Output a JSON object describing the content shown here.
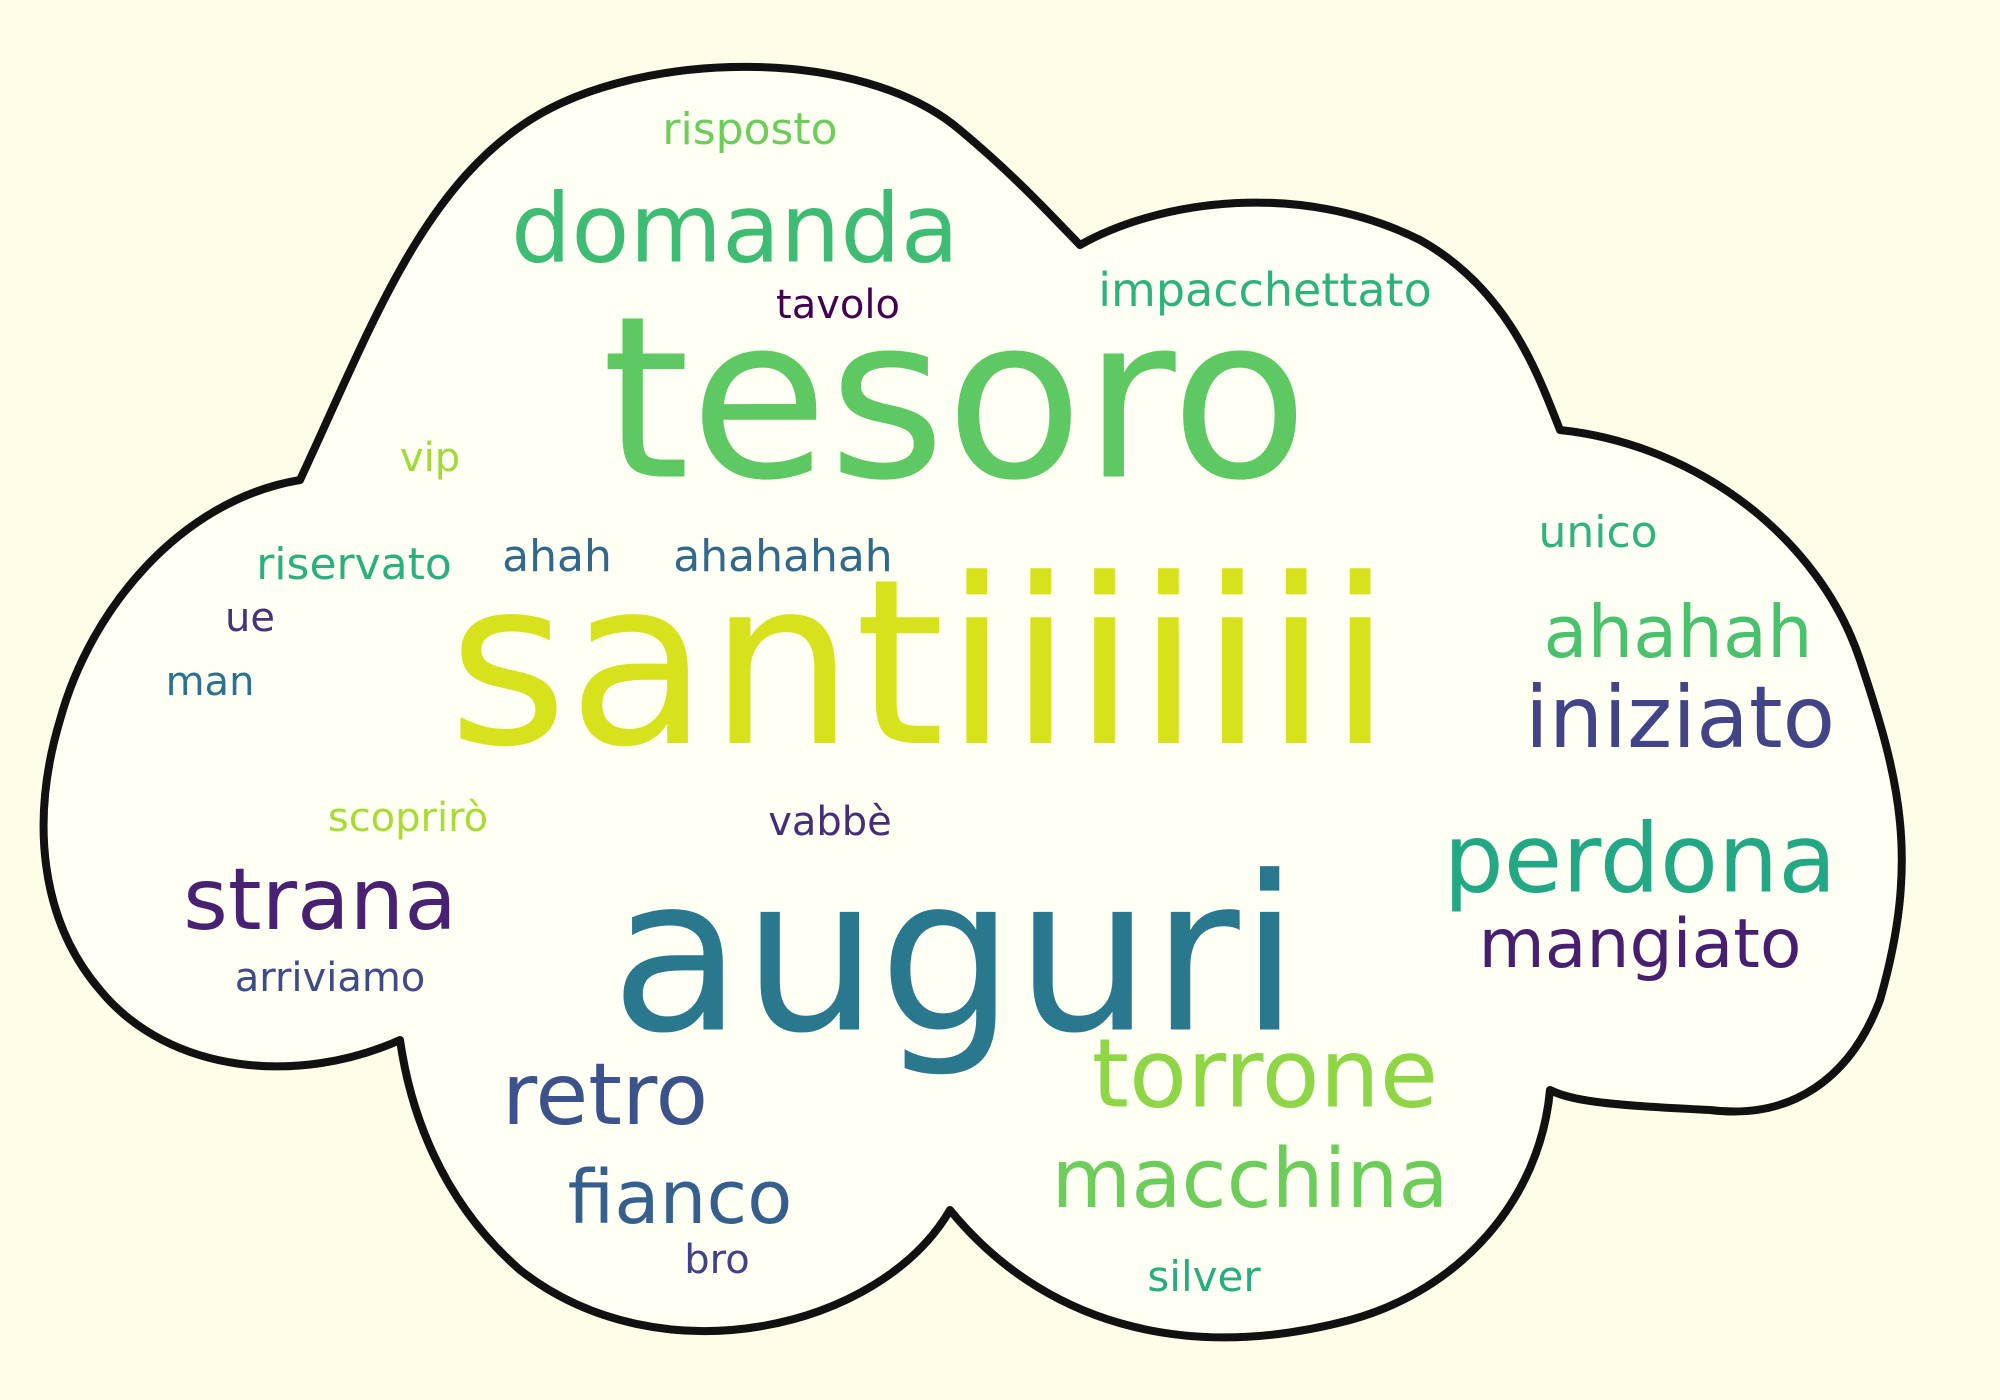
{
  "colors": {
    "background": "#fdfde8",
    "cloud_fill": "#fffff4",
    "cloud_outline": "#111111"
  },
  "words": {
    "santi": {
      "text": "santiiiiiii",
      "color": "#d7e21c"
    },
    "tesoro": {
      "text": "tesoro",
      "color": "#5ec962"
    },
    "auguri": {
      "text": "auguri",
      "color": "#2a788e"
    },
    "domanda": {
      "text": "domanda",
      "color": "#3fbc73"
    },
    "torrone": {
      "text": "torrone",
      "color": "#8ed645"
    },
    "macchina": {
      "text": "macchina",
      "color": "#6ccd5a"
    },
    "perdona": {
      "text": "perdona",
      "color": "#22a884"
    },
    "iniziato": {
      "text": "iniziato",
      "color": "#414487"
    },
    "ahahah": {
      "text": "ahahah",
      "color": "#4ac16d"
    },
    "strana": {
      "text": "strana",
      "color": "#482173"
    },
    "retro": {
      "text": "retro",
      "color": "#3b528b"
    },
    "fianco": {
      "text": "fianco",
      "color": "#355f8d"
    },
    "mangiato": {
      "text": "mangiato",
      "color": "#481f70"
    },
    "impacchettato": {
      "text": "impacchettato",
      "color": "#2db27d"
    },
    "risposto": {
      "text": "risposto",
      "color": "#6ccd5a"
    },
    "tavolo": {
      "text": "tavolo",
      "color": "#440154"
    },
    "vip": {
      "text": "vip",
      "color": "#a0da39"
    },
    "unico": {
      "text": "unico",
      "color": "#2eb37c"
    },
    "riservato": {
      "text": "riservato",
      "color": "#2ab07f"
    },
    "ahah": {
      "text": "ahah",
      "color": "#31688e"
    },
    "ahahahah": {
      "text": "ahahahah",
      "color": "#31688e"
    },
    "ue": {
      "text": "ue",
      "color": "#46327e"
    },
    "man": {
      "text": "man",
      "color": "#2c718e"
    },
    "scoprirò": {
      "text": "scoprirò",
      "color": "#a8db34"
    },
    "vabbè": {
      "text": "vabbè",
      "color": "#472c7a"
    },
    "arriviamo": {
      "text": "arriviamo",
      "color": "#3e4a89"
    },
    "bro": {
      "text": "bro",
      "color": "#424086"
    },
    "silver": {
      "text": "silver",
      "color": "#26ad81"
    }
  }
}
